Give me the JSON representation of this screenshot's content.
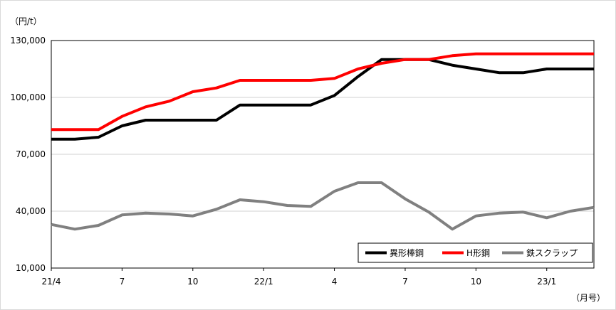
{
  "chart_data": {
    "type": "line",
    "unit_label": "（円/t）",
    "x_unit_label": "（月号）",
    "ylim": [
      10000,
      130000
    ],
    "y_ticks": [
      10000,
      40000,
      70000,
      100000,
      130000
    ],
    "y_tick_labels": [
      "10,000",
      "40,000",
      "70,000",
      "100,000",
      "130,000"
    ],
    "x": [
      "21/4",
      "21/5",
      "21/6",
      "21/7",
      "21/8",
      "21/9",
      "21/10",
      "21/11",
      "21/12",
      "22/1",
      "22/2",
      "22/3",
      "22/4",
      "22/5",
      "22/6",
      "22/7",
      "22/8",
      "22/9",
      "22/10",
      "22/11",
      "22/12",
      "23/1",
      "23/2",
      "23/3"
    ],
    "x_tick_labels": [
      {
        "index": 0,
        "label": "21/4"
      },
      {
        "index": 3,
        "label": "7"
      },
      {
        "index": 6,
        "label": "10"
      },
      {
        "index": 9,
        "label": "22/1"
      },
      {
        "index": 12,
        "label": "4"
      },
      {
        "index": 15,
        "label": "7"
      },
      {
        "index": 18,
        "label": "10"
      },
      {
        "index": 21,
        "label": "23/1"
      }
    ],
    "grid": "horizontal",
    "legend_position": "bottom-right",
    "series": [
      {
        "name": "異形棒鋼",
        "color": "#000000",
        "values": [
          78000,
          78000,
          79000,
          85000,
          88000,
          88000,
          88000,
          88000,
          96000,
          96000,
          96000,
          96000,
          101000,
          111000,
          120000,
          120000,
          120000,
          117000,
          115000,
          113000,
          113000,
          115000,
          115000,
          115000
        ]
      },
      {
        "name": "H形鋼",
        "color": "#ff0000",
        "values": [
          83000,
          83000,
          83000,
          90000,
          95000,
          98000,
          103000,
          105000,
          109000,
          109000,
          109000,
          109000,
          110000,
          115000,
          118000,
          120000,
          120000,
          122000,
          123000,
          123000,
          123000,
          123000,
          123000,
          123000
        ]
      },
      {
        "name": "鉄スクラップ",
        "color": "#808080",
        "values": [
          33000,
          30500,
          32500,
          38000,
          39000,
          38500,
          37500,
          41000,
          46000,
          45000,
          43000,
          42500,
          50500,
          55000,
          55000,
          46500,
          39500,
          30500,
          37500,
          39000,
          39500,
          36500,
          40000,
          42000
        ]
      }
    ]
  }
}
